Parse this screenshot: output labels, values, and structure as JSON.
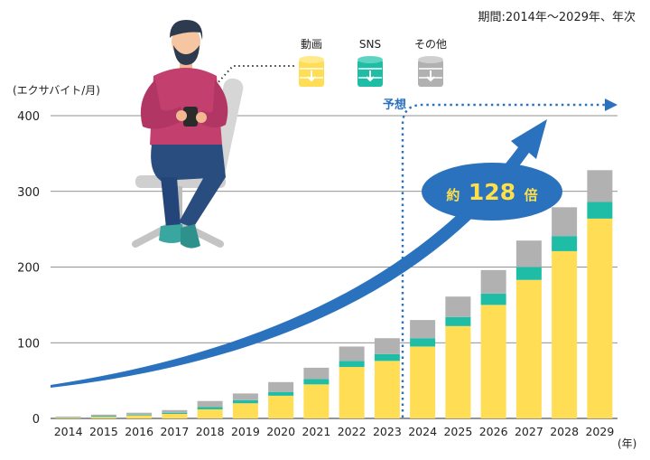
{
  "period_note": "期間:2014年～2029年、年次",
  "legend": {
    "items": [
      {
        "label": "動画",
        "color": "#FFDD55",
        "icon": "database-download-icon"
      },
      {
        "label": "SNS",
        "color": "#1FBCA6",
        "icon": "database-download-icon"
      },
      {
        "label": "その他",
        "color": "#B1B1B1",
        "icon": "database-download-icon"
      }
    ]
  },
  "forecast_label": "予想",
  "growth_callout": {
    "prefix": "約",
    "value": "128",
    "suffix": "倍"
  },
  "colors": {
    "video": "#FFDD55",
    "sns": "#1FBCA6",
    "other": "#B1B1B1",
    "arrow": "#2A72BE",
    "forecast": "#2A72BE"
  },
  "chart_data": {
    "type": "bar",
    "stacked": true,
    "ylabel": "(エクサバイト/月)",
    "xlabel": "(年)",
    "ylim": [
      0,
      400
    ],
    "yticks": [
      0,
      100,
      200,
      300,
      400
    ],
    "grid": true,
    "legend_position": "top",
    "forecast_start": "2024",
    "categories": [
      "2014",
      "2015",
      "2016",
      "2017",
      "2018",
      "2019",
      "2020",
      "2021",
      "2022",
      "2023",
      "2024",
      "2025",
      "2026",
      "2027",
      "2028",
      "2029"
    ],
    "series": [
      {
        "name": "動画",
        "values": [
          1,
          2,
          4,
          6,
          12,
          20,
          30,
          45,
          68,
          76,
          95,
          122,
          150,
          183,
          221,
          264
        ]
      },
      {
        "name": "SNS",
        "values": [
          0.5,
          1,
          1,
          1.5,
          3,
          4,
          5,
          7,
          8,
          9,
          11,
          12,
          15,
          17,
          20,
          22
        ]
      },
      {
        "name": "その他",
        "values": [
          1,
          2,
          2.5,
          3.5,
          8,
          9,
          13,
          15,
          19,
          21,
          24,
          27,
          31,
          35,
          38,
          42
        ]
      }
    ]
  }
}
